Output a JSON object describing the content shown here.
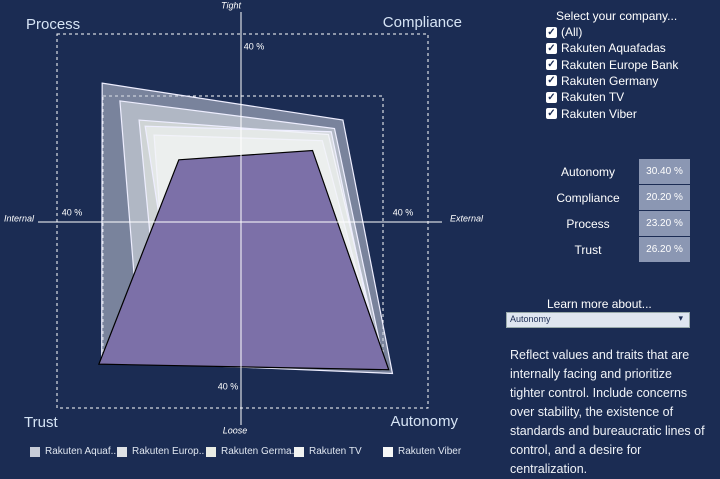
{
  "chart_data": {
    "type": "radar",
    "quadrant_labels": [
      "Process",
      "Compliance",
      "Autonomy",
      "Trust"
    ],
    "axis_labels": {
      "top": "Tight",
      "bottom": "Loose",
      "left": "Internal",
      "right": "External"
    },
    "lim": 40,
    "ticks": [
      {
        "value": 40,
        "label": "40 %"
      }
    ],
    "series": [
      {
        "name": "Rakuten Aquafadas",
        "legend_label": "Rakuten Aquaf..",
        "color": "#c7ccd8",
        "values": [
          29.7,
          21.8,
          32.4,
          29.8
        ]
      },
      {
        "name": "Rakuten Europe Bank",
        "legend_label": "Rakuten Europ..",
        "color": "#dfe2e6",
        "values": [
          25.9,
          20,
          30.7,
          22
        ]
      },
      {
        "name": "Rakuten Germany",
        "legend_label": "Rakuten Germa..",
        "color": "#e9ece4",
        "values": [
          21.8,
          18.7,
          30.2,
          18
        ]
      },
      {
        "name": "Rakuten TV",
        "legend_label": "Rakuten TV",
        "color": "#f1f3f1",
        "values": [
          18.6,
          17.4,
          29.8,
          16
        ]
      },
      {
        "name": "Rakuten Viber",
        "legend_label": "Rakuten Viber",
        "color": "#f6f7f6",
        "values": [
          20.5,
          19.3,
          29.4,
          15
        ]
      }
    ],
    "highlight": {
      "color": "#7c70a8",
      "values": [
        13.3,
        15.3,
        31.6,
        30.4
      ]
    }
  },
  "filter": {
    "title": "Select your company...",
    "options": [
      "(All)",
      "Rakuten Aquafadas",
      "Rakuten Europe Bank",
      "Rakuten Germany",
      "Rakuten TV",
      "Rakuten Viber"
    ]
  },
  "summary": {
    "rows": [
      {
        "label": "Autonomy",
        "value": 30.4,
        "value_label": "30.40 %"
      },
      {
        "label": "Compliance",
        "value": 20.2,
        "value_label": "20.20 %"
      },
      {
        "label": "Process",
        "value": 23.2,
        "value_label": "23.20 %"
      },
      {
        "label": "Trust",
        "value": 26.2,
        "value_label": "26.20 %"
      }
    ]
  },
  "learn_more": {
    "title": "Learn more about...",
    "selected": "Autonomy",
    "description": "Reflect values and traits that are internally facing and prioritize tighter control. Include concerns over stability, the existence of standards and bureaucratic lines of control, and a desire for centralization."
  }
}
